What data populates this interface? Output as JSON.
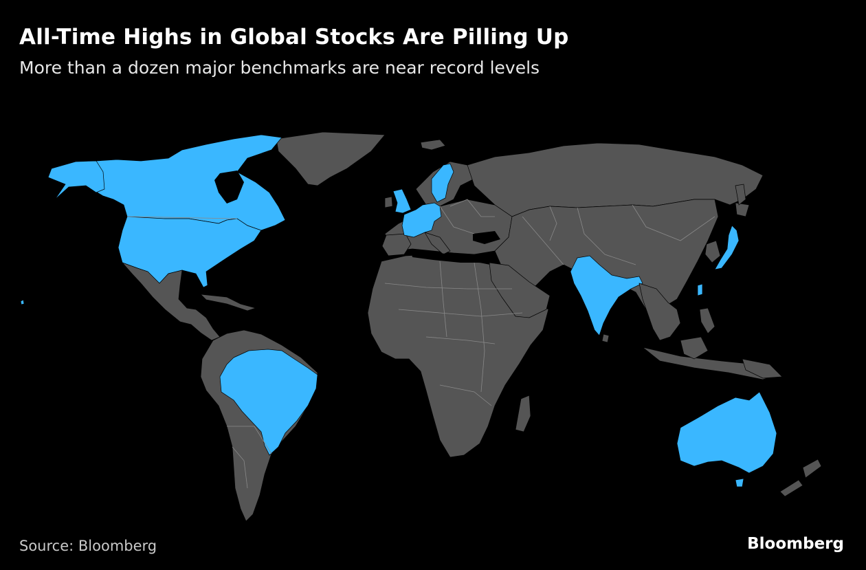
{
  "header": {
    "title": "All-Time Highs in Global Stocks Are Pilling Up",
    "subtitle": "More than a dozen major benchmarks are near record levels"
  },
  "footer": {
    "source": "Source: Bloomberg",
    "brand": "Bloomberg"
  },
  "colors": {
    "highlight": "#3ab7ff",
    "land": "#555555",
    "background": "#000000"
  },
  "highlighted_regions": [
    "Canada",
    "United States",
    "Brazil",
    "United Kingdom",
    "France",
    "Netherlands",
    "Germany",
    "Sweden",
    "Denmark",
    "Switzerland",
    "India",
    "Taiwan",
    "Japan",
    "Australia"
  ]
}
